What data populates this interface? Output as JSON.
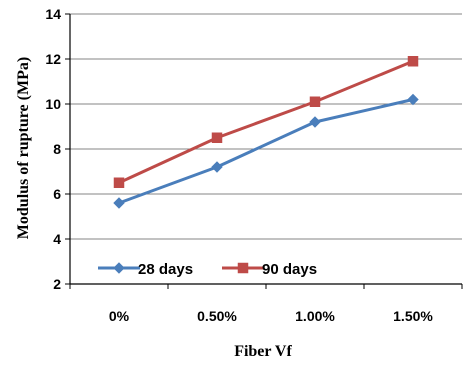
{
  "chart_data": {
    "type": "line",
    "categories": [
      "0%",
      "0.50%",
      "1.00%",
      "1.50%"
    ],
    "series": [
      {
        "name": "28 days",
        "values": [
          5.6,
          7.2,
          9.2,
          10.2
        ],
        "color": "#4a7ebb",
        "marker": "diamond"
      },
      {
        "name": "90 days",
        "values": [
          6.5,
          8.5,
          10.1,
          11.9
        ],
        "color": "#be4b48",
        "marker": "square"
      }
    ],
    "xlabel": "Fiber Vf",
    "ylabel": "Modulus of rupture (MPa)",
    "ylim": [
      2,
      14
    ],
    "yticks": [
      "2",
      "4",
      "6",
      "8",
      "10",
      "12",
      "14"
    ],
    "grid": "horizontal",
    "legend_position": "bottom-left-inside"
  }
}
